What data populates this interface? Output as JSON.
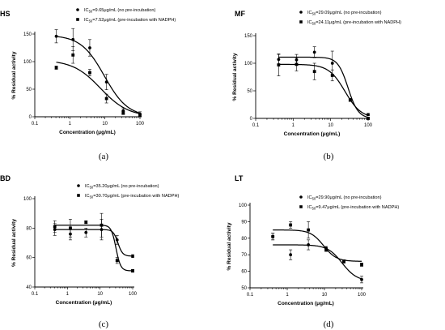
{
  "chart_data": [
    {
      "type": "scatter",
      "panel_label": "HS",
      "caption": "(a)",
      "xlabel": "Concentration (μg/mL)",
      "ylabel": "% Residual activity",
      "xscale": "log",
      "xlim": [
        0.1,
        100
      ],
      "ylim": [
        0,
        150
      ],
      "xticks": [
        "0.1",
        "1",
        "10",
        "100"
      ],
      "yticks": [
        0,
        50,
        100,
        150
      ],
      "legend_position": "top-right",
      "series": [
        {
          "name": "IC50=9.65μg/mL (no pre-incubation)",
          "marker": "circle",
          "ic50": 9.65,
          "top": 148,
          "bottom": 0,
          "hill": 1.3,
          "x": [
            0.41,
            1.23,
            3.7,
            11.1,
            33.3,
            100
          ],
          "y": [
            146,
            140,
            125,
            63,
            11,
            5
          ],
          "err": [
            12,
            20,
            15,
            14,
            5,
            4
          ]
        },
        {
          "name": "IC50=7.52μg/mL (pre-incubation with NADPH)",
          "marker": "square",
          "ic50": 7.52,
          "top": 103,
          "bottom": 0,
          "hill": 1.1,
          "x": [
            0.41,
            1.23,
            3.7,
            11.1,
            33.3,
            100
          ],
          "y": [
            89,
            112,
            80,
            33,
            7,
            3
          ],
          "err": [
            3,
            15,
            6,
            8,
            3,
            2
          ]
        }
      ]
    },
    {
      "type": "scatter",
      "panel_label": "MF",
      "caption": "(b)",
      "xlabel": "Concentration (μg/mL)",
      "ylabel": "% Residual activity",
      "xscale": "log",
      "xlim": [
        0.1,
        100
      ],
      "ylim": [
        0,
        150
      ],
      "xticks": [
        "0.1",
        "1",
        "10",
        "100"
      ],
      "yticks": [
        0,
        50,
        100,
        150
      ],
      "legend_position": "top-right",
      "series": [
        {
          "name": "IC50=29.09μg/mL (no pre-incubation)",
          "marker": "circle",
          "ic50": 29.09,
          "top": 111,
          "bottom": 0,
          "hill": 3.2,
          "x": [
            0.41,
            1.23,
            3.7,
            11.1,
            33.3,
            100
          ],
          "y": [
            107,
            106,
            120,
            100,
            34,
            7
          ],
          "err": [
            9,
            10,
            10,
            22,
            2,
            2
          ]
        },
        {
          "name": "IC50=24.11μg/mL (pre-incubation with NADPH)",
          "marker": "square",
          "ic50": 24.11,
          "top": 98,
          "bottom": 0,
          "hill": 2.0,
          "x": [
            0.41,
            1.23,
            3.7,
            11.1,
            33.3,
            100
          ],
          "y": [
            97,
            98,
            85,
            78,
            33,
            0
          ],
          "err": [
            20,
            12,
            15,
            10,
            2,
            2
          ]
        }
      ]
    },
    {
      "type": "scatter",
      "panel_label": "BD",
      "caption": "(c)",
      "xlabel": "Concentration (μg/mL)",
      "ylabel": "% Residual activity",
      "xscale": "log",
      "xlim": [
        0.1,
        100
      ],
      "ylim": [
        40,
        100
      ],
      "xticks": [
        "0.1",
        "1",
        "10",
        "100"
      ],
      "yticks": [
        40,
        60,
        80,
        100
      ],
      "legend_position": "top-right",
      "series": [
        {
          "name": "IC50=35.20μg/mL (no pre-incubation)",
          "marker": "circle",
          "ic50": 35.2,
          "top": 79,
          "bottom": 61,
          "hill": 6,
          "x": [
            0.41,
            1.23,
            3.7,
            11.1,
            33.3,
            100
          ],
          "y": [
            79,
            76,
            77,
            79,
            72,
            61
          ],
          "err": [
            4,
            4,
            3,
            7,
            3,
            1
          ]
        },
        {
          "name": "IC50=30.70μg/mL (pre-incubation with NADPH)",
          "marker": "square",
          "ic50": 30.7,
          "top": 82,
          "bottom": 51,
          "hill": 6,
          "x": [
            0.41,
            1.23,
            3.7,
            11.1,
            33.3,
            100
          ],
          "y": [
            81,
            80,
            84,
            82,
            58,
            51
          ],
          "err": [
            4,
            6,
            1,
            8,
            2,
            1
          ]
        }
      ]
    },
    {
      "type": "scatter",
      "panel_label": "LT",
      "caption": "(d)",
      "xlabel": "Concentration (μg/mL)",
      "ylabel": "% Residual activity",
      "xscale": "log",
      "xlim": [
        0.1,
        100
      ],
      "ylim": [
        50,
        100
      ],
      "xticks": [
        "0.1",
        "1",
        "10",
        "100"
      ],
      "yticks": [
        50,
        60,
        70,
        80,
        90,
        100
      ],
      "legend_position": "top-right",
      "series": [
        {
          "name": "IC50=29.90μg/mL (no pre-incubation)",
          "marker": "circle",
          "ic50": 29.9,
          "top": 76,
          "bottom": 54,
          "hill": 2.2,
          "x": [
            0.41,
            1.23,
            3.7,
            11.1,
            33.3,
            100
          ],
          "y": [
            81,
            70,
            76,
            74,
            66,
            55
          ],
          "err": [
            2,
            3,
            3,
            1,
            1,
            2
          ]
        },
        {
          "name": "IC50=9.47μg/mL (pre-incubation with NADPH)",
          "marker": "square",
          "ic50": 9.47,
          "top": 85,
          "bottom": 66,
          "hill": 2.5,
          "x": [
            0.41,
            1.23,
            3.7,
            11.1,
            33.3,
            100
          ],
          "y": [
            81,
            88,
            85,
            73,
            66,
            64
          ],
          "err": [
            2,
            2,
            5,
            1,
            1,
            1
          ]
        }
      ]
    }
  ]
}
